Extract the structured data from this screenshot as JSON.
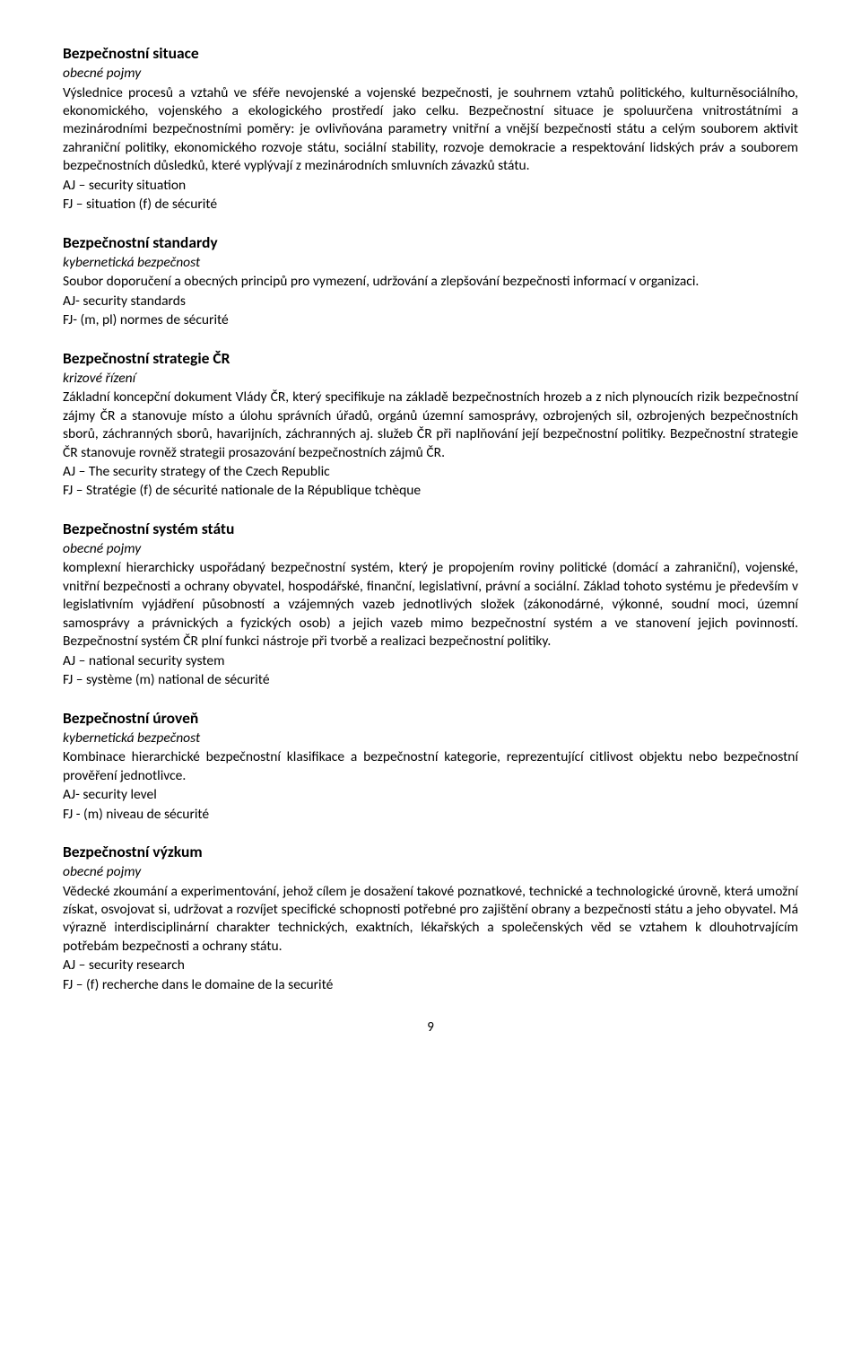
{
  "entries": [
    {
      "title": "Bezpečnostní situace",
      "category": "obecné pojmy",
      "definition": "Výslednice procesů a vztahů ve sféře nevojenské a vojenské bezpečnosti, je souhrnem vztahů politického, kulturněsociálního, ekonomického, vojenského a ekologického prostředí jako celku. Bezpečnostní situace je spoluurčena vnitrostátními a mezinárodními bezpečnostními poměry: je ovlivňována parametry vnitřní a vnější bezpečnosti státu a celým souborem aktivit zahraniční politiky, ekonomického rozvoje státu, sociální stability, rozvoje demokracie a respektování lidských práv a souborem bezpečnostních důsledků, které vyplývají z mezinárodních smluvních závazků státu.",
      "aj": "AJ – security situation",
      "fj": "FJ – situation (f) de sécurité"
    },
    {
      "title": "Bezpečnostní standardy",
      "category": "kybernetická bezpečnost",
      "definition": "Soubor doporučení a obecných principů pro vymezení, udržování a zlepšování bezpečnosti informací v organizaci.",
      "aj": "AJ- security standards",
      "fj": "FJ- (m, pl) normes de sécurité"
    },
    {
      "title": "Bezpečnostní strategie ČR",
      "category": "krizové řízení",
      "definition": "Základní koncepční dokument Vlády ČR, který specifikuje na základě bezpečnostních hrozeb a z nich plynoucích rizik bezpečnostní zájmy ČR a stanovuje místo a úlohu správních úřadů, orgánů územní samosprávy, ozbrojených sil, ozbrojených bezpečnostních sborů, záchranných sborů, havarijních, záchranných aj. služeb ČR při naplňování její bezpečnostní politiky. Bezpečnostní strategie ČR stanovuje rovněž strategii prosazování bezpečnostních zájmů ČR.",
      "aj": "AJ – The security strategy of the Czech Republic",
      "fj": "FJ – Stratégie (f) de sécurité nationale de la République tchèque"
    },
    {
      "title": "Bezpečnostní systém státu",
      "category": "obecné pojmy",
      "definition": "komplexní hierarchicky uspořádaný bezpečnostní systém, který je propojením roviny politické (domácí a zahraniční), vojenské, vnitřní bezpečnosti a ochrany obyvatel, hospodářské, finanční, legislativní, právní a sociální. Základ tohoto systému je především v legislativním vyjádření působností a vzájemných vazeb jednotlivých složek (zákonodárné, výkonné, soudní moci, územní samosprávy a právnických a fyzických osob) a jejich vazeb mimo bezpečnostní systém a ve stanovení jejich povinností. Bezpečnostní systém ČR plní funkci nástroje při tvorbě a realizaci bezpečnostní politiky.",
      "aj": "AJ – national security system",
      "fj": "FJ – système (m) national de sécurité"
    },
    {
      "title": "Bezpečnostní úroveň",
      "category": "kybernetická bezpečnost",
      "definition": "Kombinace hierarchické bezpečnostní klasifikace a bezpečnostní kategorie, reprezentující citlivost objektu nebo bezpečnostní prověření jednotlivce.",
      "aj": "AJ- security level",
      "fj": "FJ -  (m) niveau de sécurité"
    },
    {
      "title": "Bezpečnostní výzkum",
      "category": "obecné pojmy",
      "definition": "Vědecké zkoumání a experimentování, jehož cílem je dosažení takové poznatkové, technické a technologické úrovně, která umožní získat, osvojovat si, udržovat a rozvíjet specifické schopnosti potřebné pro zajištění obrany a bezpečnosti státu a jeho obyvatel. Má výrazně interdisciplinární charakter technických, exaktních, lékařských a společenských věd se vztahem k dlouhotrvajícím potřebám bezpečnosti a ochrany státu.",
      "aj": "AJ – security research",
      "fj": "FJ – (f) recherche dans le domaine de la securité"
    }
  ],
  "pageNumber": "9"
}
